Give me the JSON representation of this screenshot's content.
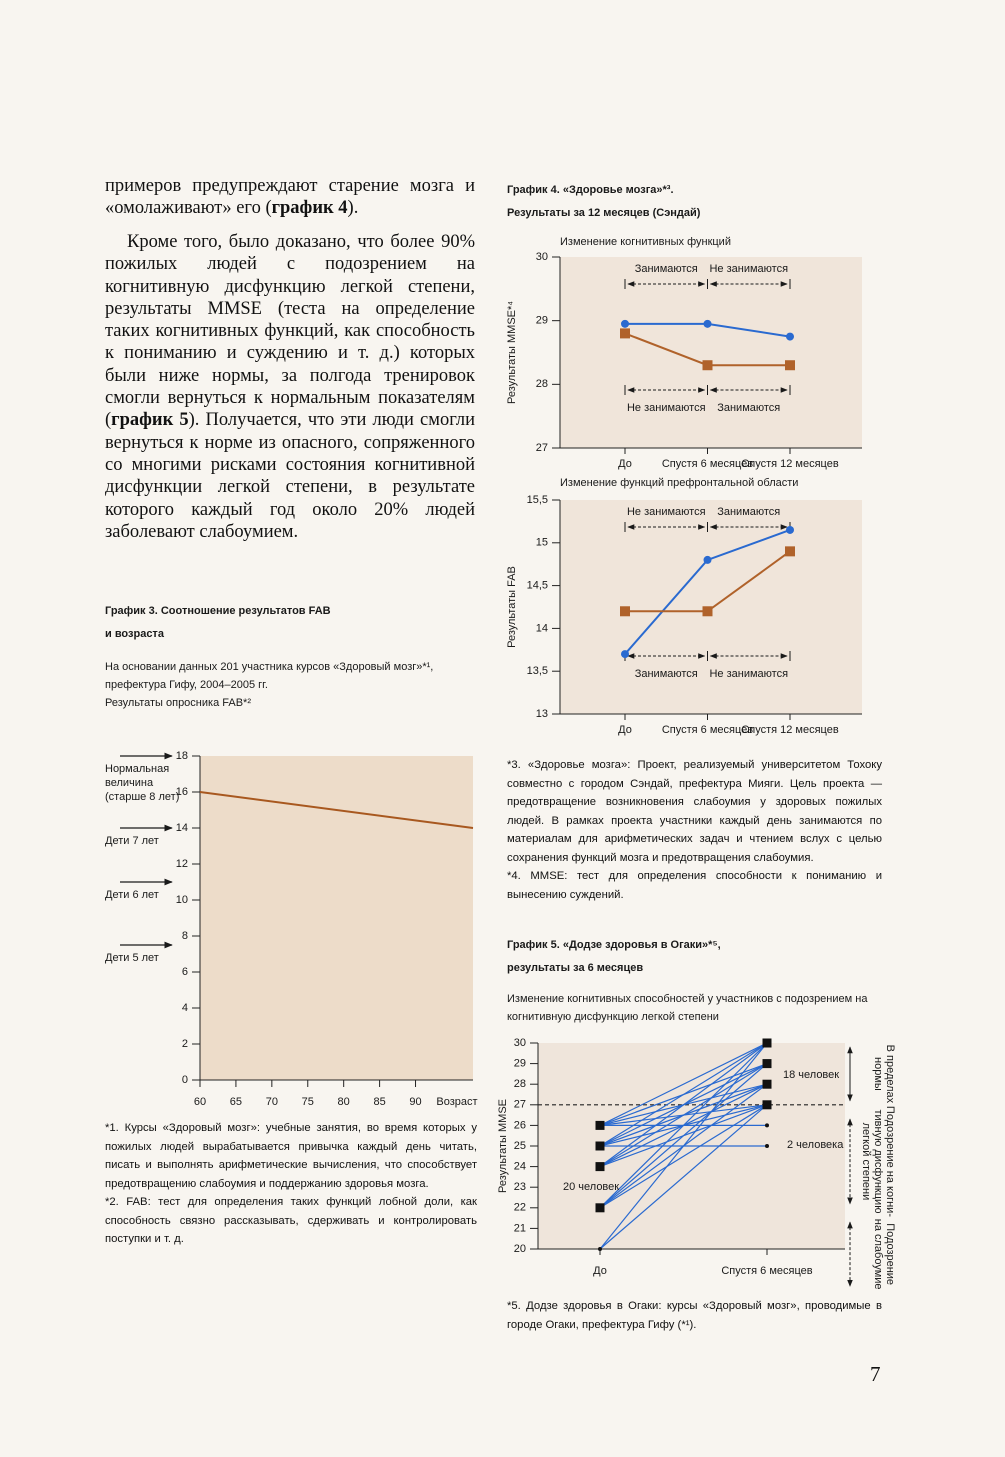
{
  "body": {
    "paragraphs": [
      [
        "примеров предупреждают старение мозга и «омолаживают» его (",
        {
          "bold": "график 4"
        },
        ")."
      ],
      [
        "Кроме того, было доказано, что более 90% пожилых людей с подозрением на когнитивную дисфункцию легкой степени, результаты MMSE (теста на определение таких когнитивных функций, как способность к пониманию и суждению и т. д.) которых были ниже нормы, за полгода тренировок смогли вернуться к нормальным показателям (",
        {
          "bold": "график 5"
        },
        "). Получается, что эти люди смогли вернуться к норме из опасного, сопряженного со многими рисками состояния когнитивной дисфункции легкой степени, в результате которого каждый год около 20% людей заболевают слабоумием."
      ]
    ]
  },
  "footnotes": [
    "*1. Курсы «Здоровый мозг»: учебные занятия, во время которых у пожилых людей вырабатывается привычка каждый день читать, писать и выполнять арифметические вычисления, что способствует предотвращению слабоумия и поддержанию здоровья мозга.",
    "*2. FAB: тест для определения таких функций лобной доли, как способность связно рассказывать, сдерживать и контролировать поступки и т. д.",
    "*3. «Здоровье мозга»: Проект, реализуемый университетом Тохоку совместно с городом Сэндай, префектура Мияги. Цель проекта — предотвращение возникновения слабоумия у здоровых пожилых людей. В рамках проекта участники каждый день занимаются по материалам для арифметических задач и чтением вслух с целью сохранения функций мозга и предотвращения слабоумия.",
    "*4. MMSE: тест для определения способности к пониманию и вынесению суждений.",
    "*5. Додзе здоровья в Огаки: курсы «Здоровый мозг», проводимые в городе Огаки, префектура Гифу (*¹)."
  ],
  "page_number": "7",
  "chart_data": [
    {
      "type": "line",
      "title": [
        "График 3. Соотношение результатов FAB",
        "и возраста"
      ],
      "notes": [
        "На основании данных 201 участника курсов «Здоровый мозг»*¹,",
        "префектура Гифу, 2004–2005 гг.",
        "Результаты опросника FAB*²"
      ],
      "x_label": "Возраст",
      "xlim": [
        60,
        98
      ],
      "xticks": [
        60,
        65,
        70,
        75,
        80,
        85,
        90
      ],
      "ylim": [
        0,
        18
      ],
      "yticks": [
        0,
        2,
        4,
        6,
        8,
        10,
        12,
        14,
        16,
        18
      ],
      "series": [
        {
          "color": "#a8581f",
          "x": [
            60,
            98
          ],
          "values": [
            16,
            14
          ]
        }
      ],
      "levels": [
        {
          "label": [
            "Нормальная",
            "величина",
            "(старше 8 лет)"
          ],
          "value": 18
        },
        {
          "label": [
            "Дети 7 лет"
          ],
          "value": 14
        },
        {
          "label": [
            "Дети 6 лет"
          ],
          "value": 11
        },
        {
          "label": [
            "Дети 5 лет"
          ],
          "value": 7.5
        }
      ]
    },
    {
      "type": "line",
      "title": [
        "График 4. «Здоровье мозга»*³.",
        "Результаты за 12 месяцев (Сэндай)"
      ],
      "subtitle": "Изменение когнитивных функций",
      "y_label": "Результаты MMSE*⁴",
      "categories": [
        "До",
        "Спустя 6 месяцев",
        "Спустя 12 месяцев"
      ],
      "ylim": [
        27,
        30
      ],
      "yticks": [
        27,
        28,
        29,
        30
      ],
      "series": [
        {
          "color": "#2a6ad0",
          "marker": "circle",
          "values": [
            28.95,
            28.95,
            28.75
          ]
        },
        {
          "color": "#b0622a",
          "marker": "square",
          "values": [
            28.8,
            28.3,
            28.3
          ]
        }
      ],
      "annotations": [
        {
          "text": "Занимаются",
          "from": 0,
          "to": 1,
          "position": "top"
        },
        {
          "text": "Не занимаются",
          "from": 1,
          "to": 2,
          "position": "top"
        },
        {
          "text": "Не занимаются",
          "from": 0,
          "to": 1,
          "position": "bottom"
        },
        {
          "text": "Занимаются",
          "from": 1,
          "to": 2,
          "position": "bottom"
        }
      ]
    },
    {
      "type": "line",
      "subtitle": "Изменение функций префронтальной области",
      "y_label": "Результаты FAB",
      "categories": [
        "До",
        "Спустя 6 месяцев",
        "Спустя 12 месяцев"
      ],
      "ylim": [
        13,
        15.5
      ],
      "yticks": [
        13,
        {
          "value": 13.5,
          "label": "13,5"
        },
        14,
        {
          "value": 14.5,
          "label": "14,5"
        },
        15,
        {
          "value": 15.5,
          "label": "15,5"
        }
      ],
      "series": [
        {
          "color": "#2a6ad0",
          "marker": "circle",
          "values": [
            13.7,
            14.8,
            15.15
          ]
        },
        {
          "color": "#b0622a",
          "marker": "square",
          "values": [
            14.2,
            14.2,
            14.9
          ]
        }
      ],
      "annotations": [
        {
          "text": "Не занимаются",
          "from": 0,
          "to": 1,
          "position": "top"
        },
        {
          "text": "Занимаются",
          "from": 1,
          "to": 2,
          "position": "top"
        },
        {
          "text": "Занимаются",
          "from": 0,
          "to": 1,
          "position": "bottom"
        },
        {
          "text": "Не занимаются",
          "from": 1,
          "to": 2,
          "position": "bottom"
        }
      ]
    },
    {
      "type": "slope",
      "title": [
        "График 5. «Додзе здоровья в Огаки»*⁵,",
        "результаты за 6 месяцев"
      ],
      "subtitle": [
        "Изменение когнитивных способностей у участников с подозрением на",
        "когнитивную дисфункцию легкой степени"
      ],
      "y_label": "Результаты MMSE",
      "categories": [
        "До",
        "Спустя 6 месяцев"
      ],
      "ylim": [
        20,
        30
      ],
      "yticks": [
        20,
        21,
        22,
        23,
        24,
        25,
        26,
        27,
        28,
        29,
        30
      ],
      "threshold": 27,
      "color": "#2a6ad0",
      "pairs": [
        [
          26,
          30
        ],
        [
          26,
          29
        ],
        [
          26,
          28
        ],
        [
          26,
          27
        ],
        [
          26,
          26
        ],
        [
          25,
          30
        ],
        [
          25,
          29
        ],
        [
          25,
          28
        ],
        [
          25,
          27
        ],
        [
          25,
          25
        ],
        [
          24,
          30
        ],
        [
          24,
          29
        ],
        [
          24,
          28
        ],
        [
          24,
          27
        ],
        [
          22,
          30
        ],
        [
          22,
          29
        ],
        [
          22,
          28
        ],
        [
          22,
          27
        ],
        [
          20,
          30
        ],
        [
          20,
          27
        ]
      ],
      "labels": [
        "18 человек",
        "2 человека",
        "20 человек"
      ],
      "zones": [
        {
          "text": [
            "В пределах",
            "нормы"
          ],
          "from": 27,
          "to": 30
        },
        {
          "text": [
            "Подозрение на когни-",
            "тивную дисфункцию",
            "легкой степени"
          ],
          "from": 22,
          "to": 26.5
        },
        {
          "text": [
            "Подозрение",
            "на слабоумие"
          ],
          "from": 18,
          "to": 21.5
        }
      ]
    }
  ]
}
